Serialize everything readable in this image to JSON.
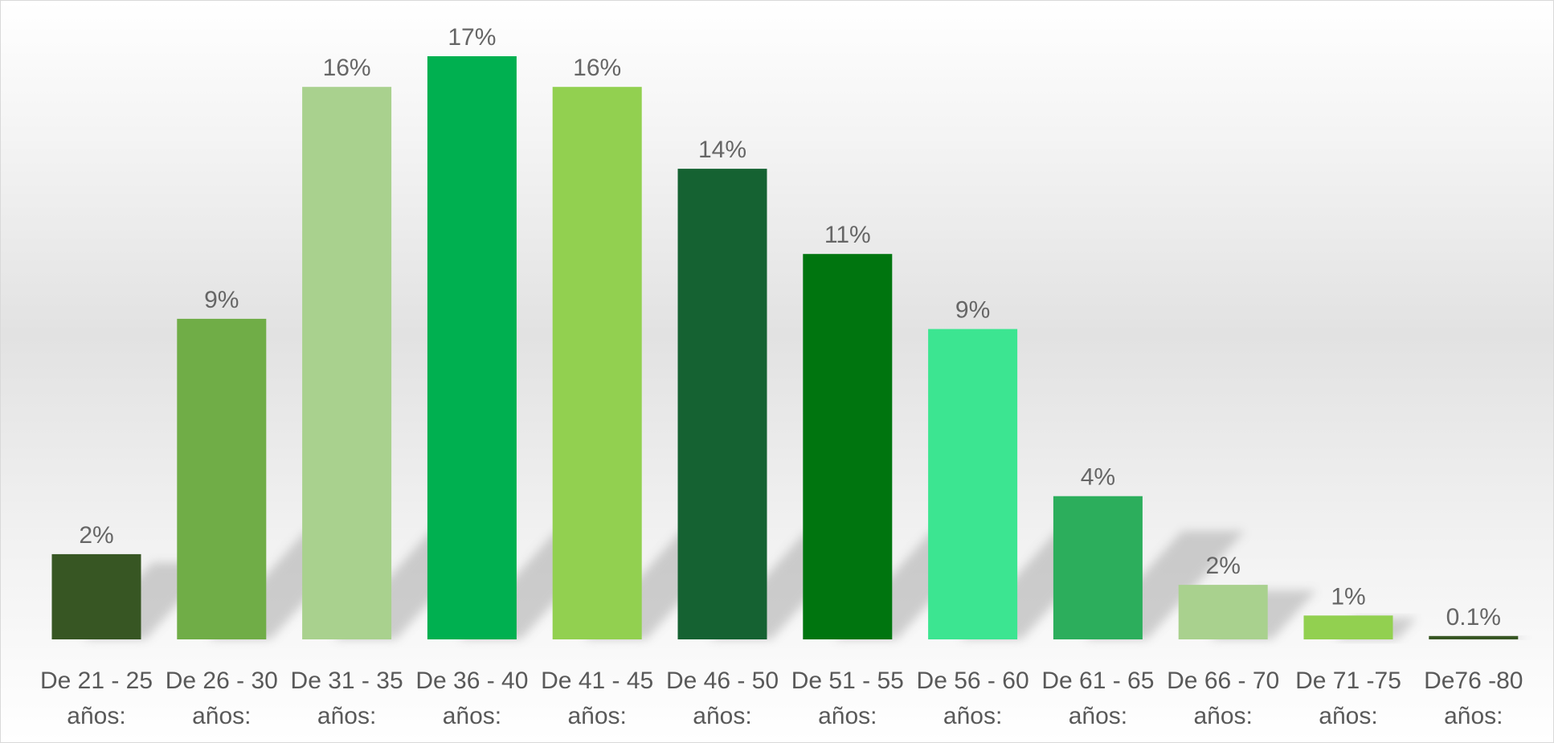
{
  "chart_data": {
    "type": "bar",
    "title": "",
    "xlabel": "",
    "ylabel": "",
    "ylim": [
      0,
      17.5
    ],
    "grid": false,
    "legend": "none",
    "categories": [
      [
        "De 21 - 25",
        "años:"
      ],
      [
        "De 26 - 30",
        "años:"
      ],
      [
        "De 31 - 35",
        "años:"
      ],
      [
        "De 36 - 40",
        "años:"
      ],
      [
        "De 41 - 45",
        "años:"
      ],
      [
        "De 46 - 50",
        "años:"
      ],
      [
        "De 51 - 55",
        "años:"
      ],
      [
        "De 56 - 60",
        "años:"
      ],
      [
        "De 61 - 65",
        "años:"
      ],
      [
        "De 66 - 70",
        "años:"
      ],
      [
        "De 71 -75",
        "años:"
      ],
      [
        "De76 -80",
        "años:"
      ]
    ],
    "values": [
      2.5,
      9.4,
      16.2,
      17.1,
      16.2,
      13.8,
      11.3,
      9.1,
      4.2,
      1.6,
      0.7,
      0.1
    ],
    "data_labels": [
      "2%",
      "9%",
      "16%",
      "17%",
      "16%",
      "14%",
      "11%",
      "9%",
      "4%",
      "2%",
      "1%",
      "0.1%"
    ],
    "colors": [
      "#375623",
      "#70ad47",
      "#a9d18e",
      "#00b050",
      "#92d050",
      "#156232",
      "#00750f",
      "#3ce591",
      "#2cae5c",
      "#a9d18e",
      "#92d050",
      "#375623"
    ]
  }
}
